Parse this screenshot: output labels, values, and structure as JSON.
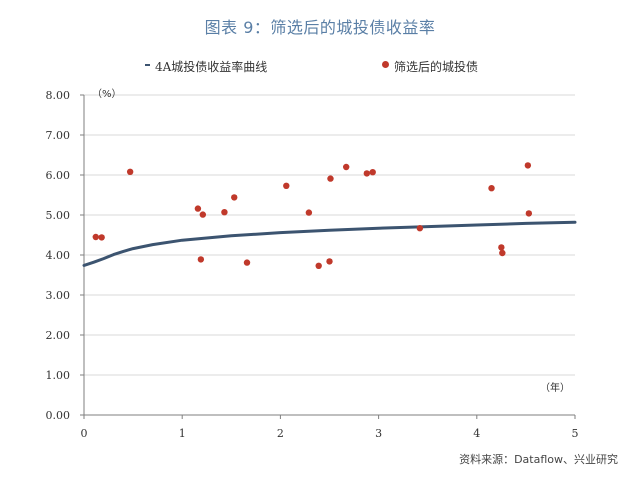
{
  "title": "图表 9：筛选后的城投债收益率",
  "source": "资料来源：Dataflow、兴业研究",
  "colors": {
    "curve": "#3c5470",
    "points": "#c0392b",
    "title": "#5a7fa6"
  },
  "chart_data": {
    "type": "scatter",
    "title": "图表 9：筛选后的城投债收益率",
    "y_unit": "（%）",
    "x_unit": "（年）",
    "xlim": [
      0,
      5
    ],
    "ylim": [
      0,
      8
    ],
    "x_ticks": [
      "0",
      "1",
      "2",
      "3",
      "4",
      "5"
    ],
    "y_ticks": [
      "0.00",
      "1.00",
      "2.00",
      "3.00",
      "4.00",
      "5.00",
      "6.00",
      "7.00",
      "8.00"
    ],
    "legend_position": "top",
    "series": [
      {
        "name": "4A城投债收益率曲线",
        "kind": "line",
        "x": [
          0,
          0.1,
          0.2,
          0.3,
          0.4,
          0.5,
          0.7,
          1.0,
          1.5,
          2.0,
          2.5,
          3.0,
          3.5,
          4.0,
          4.5,
          5.0
        ],
        "y": [
          3.74,
          3.82,
          3.91,
          4.01,
          4.09,
          4.16,
          4.26,
          4.37,
          4.48,
          4.56,
          4.62,
          4.67,
          4.71,
          4.75,
          4.79,
          4.82
        ]
      },
      {
        "name": "筛选后的城投债",
        "kind": "scatter",
        "x": [
          0.12,
          0.18,
          0.47,
          1.16,
          1.19,
          1.21,
          1.43,
          1.53,
          1.66,
          2.06,
          2.29,
          2.39,
          2.5,
          2.51,
          2.67,
          2.88,
          2.94,
          3.42,
          4.15,
          4.25,
          4.26,
          4.52,
          4.53
        ],
        "y": [
          4.45,
          4.44,
          6.08,
          5.16,
          3.89,
          5.01,
          5.07,
          5.44,
          3.81,
          5.73,
          5.06,
          3.73,
          3.84,
          5.91,
          6.2,
          6.04,
          6.07,
          4.67,
          5.67,
          4.19,
          4.05,
          6.24,
          5.04
        ]
      }
    ]
  }
}
